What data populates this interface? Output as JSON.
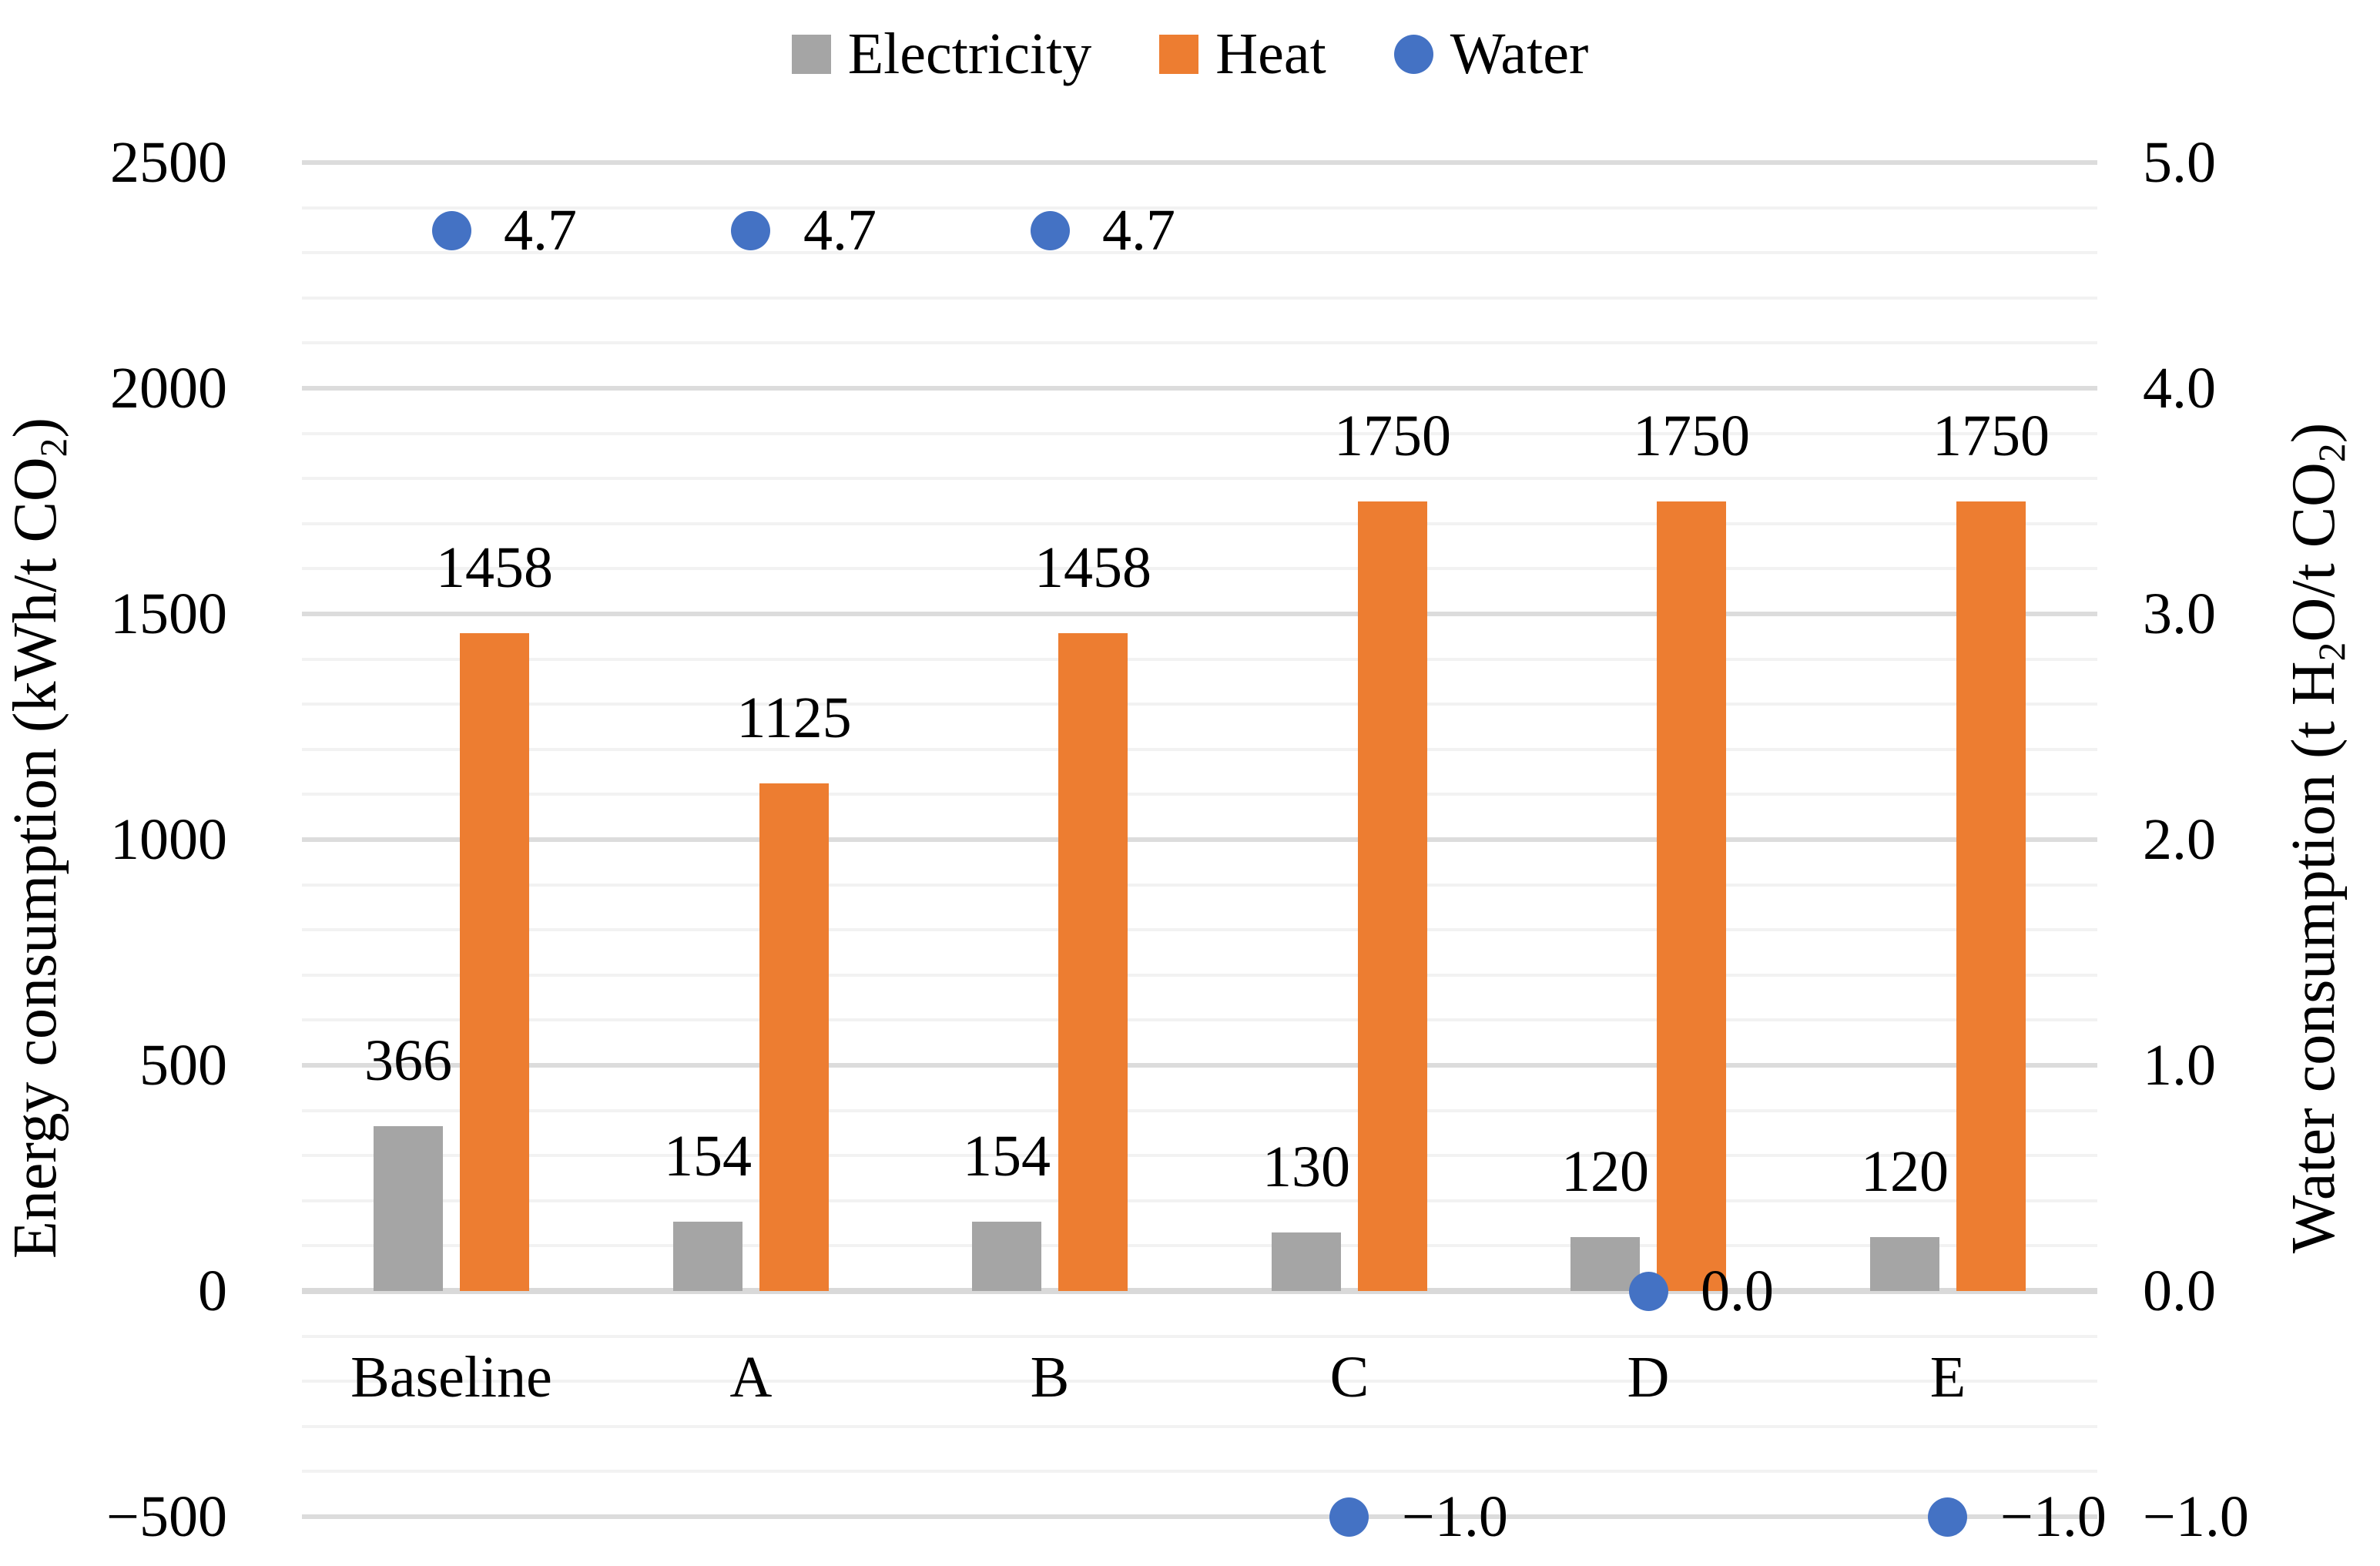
{
  "legend": [
    {
      "label": "Electricity",
      "marker": "square",
      "color": "#A5A5A5"
    },
    {
      "label": "Heat",
      "marker": "square",
      "color": "#ED7D31"
    },
    {
      "label": "Water",
      "marker": "circle",
      "color": "#4472C4"
    }
  ],
  "colors": {
    "electricity": "#A5A5A5",
    "heat": "#ED7D31",
    "water": "#4472C4",
    "grid_minor": "#F2F2F2",
    "grid_major": "#DCDCDC",
    "axis_line": "#D9D9D9",
    "text": "#000000",
    "background": "#FFFFFF"
  },
  "chart_data": {
    "type": "bar",
    "title": "",
    "categories": [
      "Baseline",
      "A",
      "B",
      "C",
      "D",
      "E"
    ],
    "series": [
      {
        "name": "Electricity",
        "type": "bar",
        "axis": "left",
        "color": "#A5A5A5",
        "values": [
          366,
          154,
          154,
          130,
          120,
          120
        ]
      },
      {
        "name": "Heat",
        "type": "bar",
        "axis": "left",
        "color": "#ED7D31",
        "values": [
          1458,
          1125,
          1458,
          1750,
          1750,
          1750
        ]
      },
      {
        "name": "Water",
        "type": "scatter",
        "axis": "right",
        "color": "#4472C4",
        "values": [
          4.7,
          4.7,
          4.7,
          -1.0,
          0.0,
          -1.0
        ]
      }
    ],
    "data_labels": {
      "Electricity": [
        "366",
        "154",
        "154",
        "130",
        "120",
        "120"
      ],
      "Heat": [
        "1458",
        "1125",
        "1458",
        "1750",
        "1750",
        "1750"
      ],
      "Water": [
        "4.7",
        "4.7",
        "4.7",
        "−1.0",
        "0.0",
        "−1.0"
      ]
    },
    "left_axis": {
      "title_text": "Energy consumption (kWh/t CO2)",
      "title_parts": [
        [
          "Energy consumption (kWh/t CO",
          false
        ],
        [
          "2",
          true
        ],
        [
          ")",
          false
        ]
      ],
      "min": -500,
      "max": 2500,
      "major_step": 500,
      "minor_step": 100,
      "tick_labels": [
        "2500",
        "2000",
        "1500",
        "1000",
        "500",
        "0",
        "−500"
      ]
    },
    "right_axis": {
      "title_text": "Water consumption (t H2O/t CO2)",
      "title_parts": [
        [
          "Water consumption (t H",
          false
        ],
        [
          "2",
          true
        ],
        [
          "O/t CO",
          false
        ],
        [
          "2",
          true
        ],
        [
          ")",
          false
        ]
      ],
      "min": -1.0,
      "max": 5.0,
      "major_step": 1.0,
      "tick_labels": [
        "5.0",
        "4.0",
        "3.0",
        "2.0",
        "1.0",
        "0.0",
        "−1.0"
      ]
    },
    "grid": true,
    "legend_position": "top",
    "legend_entries": [
      "Electricity",
      "Heat",
      "Water"
    ]
  }
}
